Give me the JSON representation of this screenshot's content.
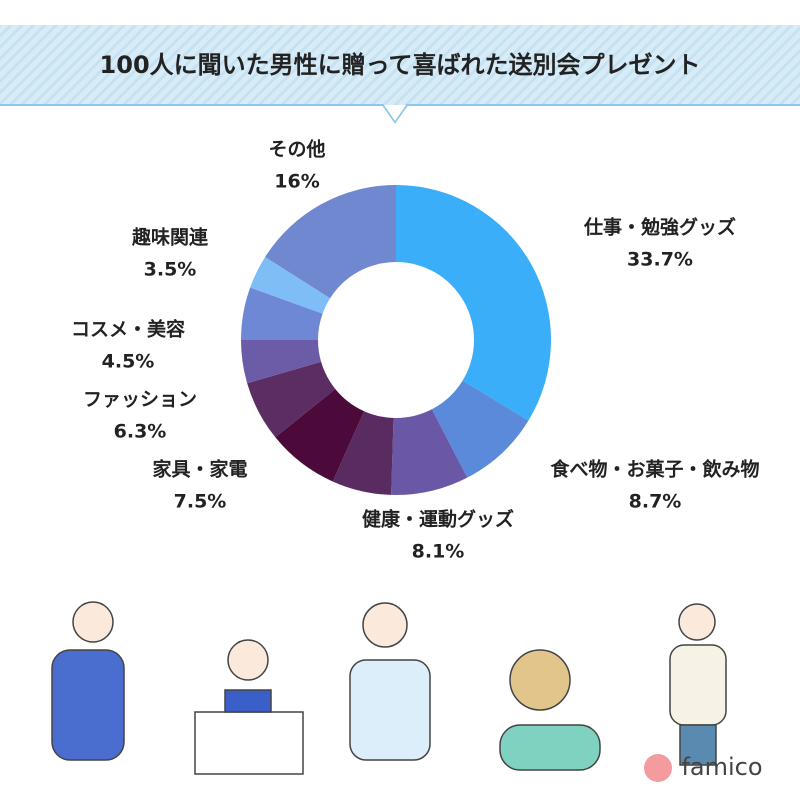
{
  "chart_data": {
    "type": "pie",
    "title": "100人に聞いた男性に贈って喜ばれた送別会プレゼント",
    "categories": [
      "仕事・勉強グッズ",
      "食べ物・お菓子・飲み物",
      "健康・運動グッズ",
      null,
      "家具・家電",
      "ファッション",
      "コスメ・美容",
      null,
      "趣味関連",
      "その他"
    ],
    "values": [
      33.7,
      8.7,
      8.1,
      6.2,
      7.5,
      6.3,
      4.5,
      5.5,
      3.5,
      16
    ],
    "value_labels": [
      "33.7%",
      "8.7%",
      "8.1%",
      null,
      "7.5%",
      "6.3%",
      "4.5%",
      null,
      "3.5%",
      "16%"
    ],
    "colors": [
      "#3aaef8",
      "#5a8ad9",
      "#6a57a6",
      "#5a2b60",
      "#4b0a3a",
      "#5b2d62",
      "#6c5ca8",
      "#6f88d6",
      "#7fbdf6",
      "#7088d0"
    ],
    "donut": true
  },
  "logo": "famico"
}
